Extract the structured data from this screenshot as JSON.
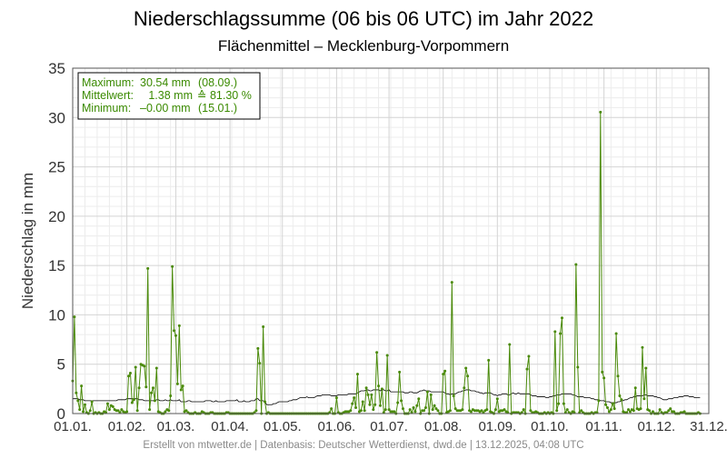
{
  "chart_data": {
    "type": "line",
    "title": "Niederschlagssumme (06 bis 06 UTC) im Jahr 2022",
    "subtitle": "Flächenmittel – Mecklenburg-Vorpommern",
    "ylabel": "Niederschlag in mm",
    "xlabel": "",
    "ylim": [
      0,
      35
    ],
    "yticks": [
      "0",
      "5",
      "10",
      "15",
      "20",
      "25",
      "30",
      "35"
    ],
    "xlim_days": [
      1,
      365
    ],
    "xticks": [
      {
        "label": "01.01.",
        "day": 1
      },
      {
        "label": "01.02.",
        "day": 32
      },
      {
        "label": "01.03.",
        "day": 60
      },
      {
        "label": "01.04.",
        "day": 91
      },
      {
        "label": "01.05.",
        "day": 121
      },
      {
        "label": "01.06.",
        "day": 152
      },
      {
        "label": "01.07.",
        "day": 182
      },
      {
        "label": "01.08.",
        "day": 213
      },
      {
        "label": "01.09.",
        "day": 244
      },
      {
        "label": "01.10.",
        "day": 274
      },
      {
        "label": "01.11.",
        "day": 305
      },
      {
        "label": "01.12.",
        "day": 335
      },
      {
        "label": "31.12.",
        "day": 365
      }
    ],
    "grid": true,
    "legend_position": "top-left",
    "colors": {
      "series": "#4a8a0a",
      "mean_line": "#000000",
      "grid": "#d4d4d4"
    },
    "stats": {
      "maximum": {
        "label": "Maximum:",
        "value": "30.54 mm",
        "date": "(08.09.)"
      },
      "mean": {
        "label": "Mittelwert:",
        "value": "1.38 mm",
        "extra": "≙ 81.30 %"
      },
      "minimum": {
        "label": "Minimum:",
        "value": "–0.00 mm",
        "date": "(15.01.)"
      }
    },
    "series": [
      {
        "values": [
          3.3,
          9.8,
          2.1,
          1.3,
          0.4,
          2.8,
          0.2,
          0.9,
          0.1,
          0.0,
          0.3,
          1.2,
          0.0,
          0.1,
          0.0,
          0.1,
          0.0,
          0.0,
          0.2,
          0.1,
          1.0,
          0.4,
          0.8,
          0.7,
          0.4,
          0.3,
          0.3,
          0.1,
          0.4,
          0.2,
          0.1,
          0.2,
          3.8,
          4.1,
          1.1,
          1.4,
          4.7,
          0.3,
          2.6,
          5.0,
          4.9,
          4.8,
          2.7,
          14.7,
          0.4,
          2.1,
          2.6,
          1.3,
          4.6,
          0.2,
          0.1,
          0.0,
          0.0,
          0.2,
          0.4,
          0.3,
          1.8,
          14.9,
          8.4,
          7.9,
          3.0,
          8.9,
          2.4,
          2.8,
          0.2,
          0.3,
          0.1,
          0.0,
          0.0,
          0.0,
          0.1,
          0.0,
          0.0,
          0.0,
          0.2,
          0.1,
          0.0,
          0.0,
          0.0,
          0.1,
          0.1,
          0.0,
          0.0,
          0.0,
          0.0,
          0.0,
          0.0,
          0.0,
          0.1,
          0.1,
          0.0,
          0.0,
          0.0,
          0.0,
          0.0,
          0.0,
          0.0,
          0.0,
          0.0,
          0.0,
          0.0,
          0.0,
          0.0,
          0.0,
          0.1,
          0.3,
          6.6,
          5.1,
          0.0,
          8.8,
          1.2,
          0.0,
          0.1,
          0.0,
          0.0,
          0.0,
          0.0,
          0.0,
          0.0,
          0.0,
          0.0,
          0.0,
          0.0,
          0.0,
          0.0,
          0.0,
          0.0,
          0.0,
          0.0,
          0.0,
          0.0,
          0.0,
          0.0,
          0.0,
          0.0,
          0.0,
          0.0,
          0.0,
          0.0,
          0.0,
          0.0,
          0.0,
          0.0,
          0.0,
          0.0,
          0.0,
          0.0,
          0.1,
          0.5,
          0.0,
          0.0,
          1.6,
          0.1,
          0.0,
          0.0,
          0.1,
          0.2,
          0.2,
          0.2,
          0.3,
          1.0,
          1.6,
          0.6,
          4.0,
          0.2,
          0.3,
          1.2,
          0.3,
          2.6,
          1.9,
          0.9,
          1.9,
          0.4,
          0.9,
          6.2,
          2.8,
          0.8,
          2.5,
          0.1,
          0.4,
          5.9,
          0.4,
          0.2,
          0.2,
          0.2,
          0.0,
          1.1,
          4.2,
          1.3,
          0.5,
          0.0,
          0.0,
          0.0,
          0.4,
          0.1,
          0.6,
          0.2,
          0.8,
          1.5,
          0.0,
          0.3,
          0.3,
          0.6,
          2.2,
          0.0,
          1.9,
          0.4,
          0.8,
          0.5,
          0.3,
          0.0,
          0.0,
          4.0,
          4.3,
          0.1,
          0.2,
          0.3,
          13.3,
          1.8,
          0.5,
          0.3,
          0.3,
          0.3,
          0.4,
          2.6,
          4.6,
          3.8,
          0.3,
          0.2,
          0.4,
          0.3,
          0.3,
          0.3,
          0.2,
          0.3,
          0.1,
          0.3,
          0.4,
          5.4,
          0.2,
          0.1,
          0.0,
          0.4,
          1.5,
          0.2,
          0.3,
          0.3,
          0.4,
          0.2,
          0.1,
          7.0,
          0.0,
          0.1,
          0.1,
          0.1,
          0.1,
          0.0,
          0.1,
          0.4,
          0.0,
          4.5,
          5.8,
          0.3,
          0.1,
          0.1,
          0.2,
          0.1,
          0.0,
          0.0,
          0.0,
          0.1,
          0.0,
          0.1,
          0.0,
          0.1,
          0.0,
          8.3,
          0.3,
          1.0,
          8.1,
          9.7,
          1.0,
          0.1,
          0.4,
          0.1,
          0.0,
          0.2,
          0.1,
          15.1,
          4.7,
          0.1,
          0.3,
          0.1,
          0.0,
          0.0,
          0.0,
          0.0,
          0.1,
          0.0,
          0.1,
          0.1,
          1.3,
          30.54,
          4.2,
          3.6,
          0.9,
          0.6,
          0.2,
          0.4,
          1.0,
          0.5,
          8.1,
          3.8,
          1.8,
          1.4,
          0.2,
          0.1,
          0.1,
          0.4,
          0.2,
          0.4,
          0.3,
          2.6,
          0.5,
          0.4,
          0.5,
          6.7,
          1.5,
          4.6,
          0.4,
          0.3,
          0.0,
          0.2,
          0.0,
          0.0,
          0.0,
          0.4,
          0.1,
          0.0,
          0.1,
          0.1,
          0.3,
          0.5,
          0.2,
          0.2,
          0.0,
          0.0,
          0.0,
          0.1,
          0.1,
          0.2,
          0.0,
          0.0,
          0.0,
          0.0,
          0.0,
          0.0,
          0.0,
          0.1,
          0.0
        ]
      },
      {
        "values": [
          1.5,
          1.5,
          1.5,
          1.5,
          1.4,
          1.4,
          1.4,
          1.3,
          1.3,
          1.3,
          1.3,
          1.3,
          1.3,
          1.3,
          1.3,
          1.3,
          1.3,
          1.3,
          1.3,
          1.3,
          1.3,
          1.3,
          1.3,
          1.3,
          1.3,
          1.3,
          1.4,
          1.4,
          1.4,
          1.4,
          1.4,
          1.5,
          1.5,
          1.5,
          1.5,
          1.5,
          1.5,
          1.5,
          1.4,
          1.4,
          1.4,
          1.3,
          1.3,
          1.3,
          1.3,
          1.3,
          1.3,
          1.3,
          1.4,
          1.4,
          1.3,
          1.3,
          1.3,
          1.4,
          1.3,
          1.3,
          1.4,
          1.3,
          1.3,
          1.3,
          1.3,
          1.4,
          1.2,
          1.2,
          1.2,
          1.2,
          1.3,
          1.3,
          1.2,
          1.2,
          1.2,
          1.2,
          1.2,
          1.2,
          1.2,
          1.2,
          1.3,
          1.3,
          1.3,
          1.3,
          1.2,
          1.2,
          1.3,
          1.2,
          1.2,
          1.2,
          1.2,
          1.2,
          1.3,
          1.3,
          1.3,
          1.3,
          1.3,
          1.3,
          1.4,
          1.2,
          1.2,
          1.2,
          1.3,
          1.2,
          1.2,
          1.2,
          1.3,
          1.3,
          1.3,
          1.5,
          1.5,
          1.3,
          1.3,
          1.3,
          1.2,
          0.9,
          0.9,
          0.9,
          0.9,
          1.0,
          1.0,
          1.1,
          1.2,
          1.2,
          1.2,
          1.2,
          1.2,
          1.2,
          1.3,
          1.3,
          1.4,
          1.4,
          1.4,
          1.5,
          1.6,
          1.6,
          1.6,
          1.6,
          1.7,
          1.6,
          1.6,
          1.6,
          1.6,
          1.7,
          1.8,
          1.8,
          1.8,
          1.9,
          1.9,
          1.9,
          1.9,
          1.9,
          1.8,
          1.8,
          1.8,
          1.8,
          1.9,
          1.9,
          1.9,
          1.9,
          1.9,
          1.9,
          2.0,
          2.0,
          2.0,
          2.0,
          2.0,
          2.1,
          2.2,
          2.3,
          2.3,
          2.3,
          2.4,
          2.4,
          2.3,
          2.3,
          2.4,
          2.4,
          2.4,
          2.4,
          2.3,
          2.4,
          2.4,
          2.3,
          2.3,
          2.4,
          2.2,
          2.2,
          2.2,
          2.2,
          2.2,
          2.2,
          2.2,
          2.2,
          2.1,
          2.1,
          2.1,
          2.2,
          2.2,
          2.1,
          2.1,
          2.1,
          2.2,
          2.3,
          2.3,
          2.4,
          2.3,
          2.3,
          2.3,
          2.2,
          2.2,
          2.2,
          2.2,
          2.2,
          2.2,
          2.2,
          2.2,
          2.1,
          2.0,
          2.0,
          1.9,
          2.0,
          2.0,
          2.0,
          2.1,
          2.2,
          2.2,
          2.3,
          2.3,
          2.4,
          2.4,
          2.4,
          2.3,
          2.3,
          2.3,
          2.2,
          2.2,
          2.1,
          2.1,
          2.0,
          2.1,
          2.1,
          2.1,
          2.1,
          2.0,
          1.9,
          1.9,
          1.8,
          1.9,
          1.9,
          2.0,
          2.0,
          2.0,
          1.9,
          1.9,
          2.0,
          2.1,
          2.0,
          2.0,
          2.1,
          2.0,
          2.0,
          2.0,
          2.0,
          2.0,
          2.0,
          1.9,
          1.8,
          1.8,
          1.8,
          1.7,
          1.7,
          1.7,
          1.7,
          1.7,
          1.6,
          1.6,
          1.7,
          1.7,
          1.8,
          1.8,
          1.9,
          1.9,
          1.9,
          2.0,
          2.0,
          2.0,
          2.0,
          2.0,
          2.0,
          1.9,
          1.9,
          1.8,
          1.7,
          1.7,
          1.7,
          1.7,
          1.6,
          1.6,
          1.6,
          1.6,
          1.5,
          1.5,
          1.4,
          1.4,
          1.4,
          1.3,
          1.3,
          1.3,
          1.2,
          1.2,
          1.2,
          1.1,
          1.1,
          1.1,
          1.1,
          1.2,
          1.2,
          1.3,
          1.3,
          1.4,
          1.4,
          1.5,
          1.6,
          1.6,
          1.7,
          1.7,
          1.8,
          1.8,
          1.8,
          1.8,
          1.9,
          1.9,
          1.8,
          1.8,
          1.8,
          1.8,
          1.7,
          1.7,
          1.6,
          1.6,
          1.5,
          1.4,
          1.4,
          1.4,
          1.5,
          1.5,
          1.5,
          1.6,
          1.6,
          1.6,
          1.7,
          1.7,
          1.7,
          1.8,
          1.8,
          1.8,
          1.7,
          1.7,
          1.7,
          1.6,
          1.6,
          1.6,
          1.6
        ]
      }
    ],
    "footer": "Erstellt von mtwetter.de | Datenbasis: Deutscher Wetterdienst, dwd.de | 13.12.2025, 04:08 UTC"
  }
}
